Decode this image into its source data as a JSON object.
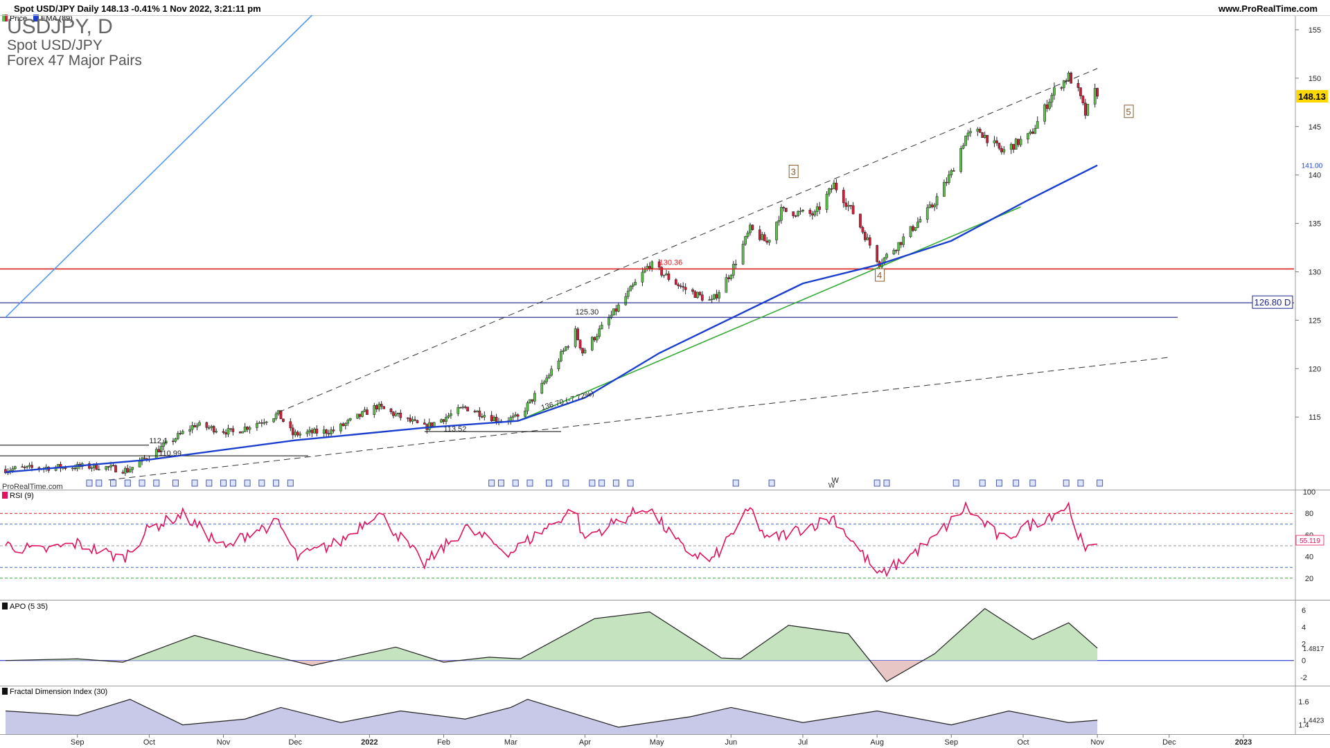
{
  "header": {
    "title": "Spot USD/JPY Daily 148.13 -0.41% 1 Nov 2022, 3:21:11 pm",
    "site": "www.ProRealTime.com"
  },
  "legend": {
    "price": "Price",
    "ema": "EMA (89)"
  },
  "overlay": {
    "symbol": "USDJPY, D",
    "name": "Spot USD/JPY",
    "list": "Forex 47 Major Pairs"
  },
  "watermark": "ProRealTime.com",
  "colors": {
    "up": "#5cbf4a",
    "down": "#d11f3a",
    "ema": "#1a3fcf",
    "trend_green": "#33aa33",
    "support_red": "#d92020",
    "horizontal_navy": "#1a1f8a",
    "rsi": "#e0115f",
    "apo_fill_pos": "#c6e3c0",
    "apo_fill_neg": "#e9c6c6",
    "fdi_fill": "#c8c8e8",
    "price_tag": "#ffd800"
  },
  "chart_data": [
    {
      "type": "candlestick",
      "title": "Spot USD/JPY Daily",
      "period": "Daily",
      "ylim": [
        107.5,
        156.5
      ],
      "y_ticks": [
        115,
        120,
        125,
        130,
        135,
        140,
        145,
        150,
        155
      ],
      "x_ticks": [
        "Sep",
        "Oct",
        "Nov",
        "Dec",
        "2022",
        "Feb",
        "Mar",
        "Apr",
        "May",
        "Jun",
        "Jul",
        "Aug",
        "Sep",
        "Oct",
        "Nov",
        "Dec",
        "2023"
      ],
      "grid": false,
      "last_price": "148.13",
      "ema_label": "141.00",
      "ema_period": 89,
      "close_anchors": [
        {
          "x": "2021-08-02",
          "y": 109.6
        },
        {
          "x": "2021-08-20",
          "y": 109.8
        },
        {
          "x": "2021-09-10",
          "y": 109.9
        },
        {
          "x": "2021-09-22",
          "y": 109.5
        },
        {
          "x": "2021-10-01",
          "y": 111.0
        },
        {
          "x": "2021-10-20",
          "y": 114.2
        },
        {
          "x": "2021-11-05",
          "y": 113.4
        },
        {
          "x": "2021-11-24",
          "y": 115.3
        },
        {
          "x": "2021-11-30",
          "y": 113.2
        },
        {
          "x": "2021-12-17",
          "y": 113.6
        },
        {
          "x": "2022-01-04",
          "y": 116.1
        },
        {
          "x": "2022-01-24",
          "y": 113.9
        },
        {
          "x": "2022-02-10",
          "y": 116.0
        },
        {
          "x": "2022-02-24",
          "y": 114.7
        },
        {
          "x": "2022-03-04",
          "y": 114.9
        },
        {
          "x": "2022-03-14",
          "y": 118.2
        },
        {
          "x": "2022-03-28",
          "y": 123.8
        },
        {
          "x": "2022-03-31",
          "y": 121.7
        },
        {
          "x": "2022-04-15",
          "y": 126.4
        },
        {
          "x": "2022-04-28",
          "y": 130.8
        },
        {
          "x": "2022-05-12",
          "y": 128.3
        },
        {
          "x": "2022-05-24",
          "y": 126.9
        },
        {
          "x": "2022-06-01",
          "y": 130.0
        },
        {
          "x": "2022-06-09",
          "y": 134.4
        },
        {
          "x": "2022-06-16",
          "y": 133.0
        },
        {
          "x": "2022-06-22",
          "y": 136.3
        },
        {
          "x": "2022-07-06",
          "y": 135.9
        },
        {
          "x": "2022-07-14",
          "y": 139.0
        },
        {
          "x": "2022-07-22",
          "y": 136.1
        },
        {
          "x": "2022-08-02",
          "y": 130.9
        },
        {
          "x": "2022-08-10",
          "y": 132.9
        },
        {
          "x": "2022-08-24",
          "y": 136.8
        },
        {
          "x": "2022-09-01",
          "y": 140.2
        },
        {
          "x": "2022-09-07",
          "y": 144.0
        },
        {
          "x": "2022-09-13",
          "y": 144.5
        },
        {
          "x": "2022-09-22",
          "y": 142.4
        },
        {
          "x": "2022-10-04",
          "y": 144.1
        },
        {
          "x": "2022-10-14",
          "y": 148.7
        },
        {
          "x": "2022-10-20",
          "y": 150.2
        },
        {
          "x": "2022-10-24",
          "y": 148.6
        },
        {
          "x": "2022-10-27",
          "y": 146.3
        },
        {
          "x": "2022-10-31",
          "y": 148.6
        },
        {
          "x": "2022-11-01",
          "y": 148.13
        }
      ],
      "ema_series": [
        {
          "x": "2021-08-02",
          "y": 109.3
        },
        {
          "x": "2021-10-01",
          "y": 110.6
        },
        {
          "x": "2021-12-01",
          "y": 112.6
        },
        {
          "x": "2022-01-24",
          "y": 113.9
        },
        {
          "x": "2022-03-04",
          "y": 114.6
        },
        {
          "x": "2022-04-01",
          "y": 117.0
        },
        {
          "x": "2022-05-02",
          "y": 121.6
        },
        {
          "x": "2022-06-01",
          "y": 125.2
        },
        {
          "x": "2022-07-01",
          "y": 128.8
        },
        {
          "x": "2022-08-01",
          "y": 130.7
        },
        {
          "x": "2022-09-01",
          "y": 133.2
        },
        {
          "x": "2022-10-03",
          "y": 137.4
        },
        {
          "x": "2022-11-01",
          "y": 141.0
        }
      ],
      "lines": [
        {
          "kind": "horizontal",
          "y": 130.3,
          "color": "support_red"
        },
        {
          "kind": "horizontal",
          "y": 126.8,
          "label": "126.80 D",
          "color": "horizontal_navy"
        },
        {
          "kind": "horizontal",
          "y": 125.3,
          "label": "125.30",
          "color": "horizontal_navy"
        },
        {
          "kind": "trend",
          "style": "dashed",
          "from": {
            "x": "2021-11-24",
            "y": 115.5
          },
          "to": {
            "x": "2022-11-01",
            "y": 151.0
          }
        },
        {
          "kind": "trend",
          "style": "dashed",
          "from": {
            "x": "2021-09-14",
            "y": 108.5
          },
          "to": {
            "x": "2022-12-02",
            "y": 121.2
          }
        },
        {
          "kind": "trend",
          "style": "solid",
          "color": "trend_green",
          "from": {
            "x": "2022-03-04",
            "y": 114.6
          },
          "to": {
            "x": "2022-09-30",
            "y": 136.7
          }
        },
        {
          "kind": "trend",
          "style": "solid",
          "color": "#5599ee",
          "from": {
            "x": "2021-08-02",
            "y": 125.3
          },
          "to": {
            "x": "2021-12-08",
            "y": 156.5
          }
        }
      ],
      "annotations": [
        {
          "text": "130.36",
          "x": "2022-05-02",
          "y": 130.7
        },
        {
          "text": "125.30",
          "x": "2022-03-28",
          "y": 125.6
        },
        {
          "text": "112.1",
          "x": "2021-10-01",
          "y": 112.3
        },
        {
          "text": "110.99",
          "x": "2021-10-05",
          "y": 111.0
        },
        {
          "text": "113.52",
          "x": "2022-02-01",
          "y": 113.5
        },
        {
          "text": "136.70 (-7.72%)",
          "x": "2022-03-14",
          "y": 115.7
        },
        {
          "text": "3",
          "x": "2022-06-27",
          "y": 140.3,
          "boxed": true
        },
        {
          "text": "4",
          "x": "2022-08-02",
          "y": 129.6,
          "boxed": true
        },
        {
          "text": "5",
          "x": "2022-11-14",
          "y": 146.5,
          "boxed": true
        },
        {
          "text": "W",
          "x": "2022-07-13",
          "y": 108.2
        }
      ]
    },
    {
      "type": "line",
      "title": "RSI (9)",
      "ylim": [
        0,
        100
      ],
      "y_ticks": [
        20,
        40,
        60,
        80,
        100
      ],
      "levels": [
        80,
        70,
        50,
        30,
        20
      ],
      "last_value": "55.119",
      "series": [
        {
          "name": "RSI (9)",
          "points": [
            {
              "x": "2021-08-02",
              "y": 51
            },
            {
              "x": "2021-08-16",
              "y": 45
            },
            {
              "x": "2021-09-01",
              "y": 52
            },
            {
              "x": "2021-09-20",
              "y": 38
            },
            {
              "x": "2021-10-01",
              "y": 66
            },
            {
              "x": "2021-10-15",
              "y": 79
            },
            {
              "x": "2021-11-02",
              "y": 47
            },
            {
              "x": "2021-11-12",
              "y": 63
            },
            {
              "x": "2021-11-24",
              "y": 71
            },
            {
              "x": "2021-12-02",
              "y": 39
            },
            {
              "x": "2021-12-20",
              "y": 54
            },
            {
              "x": "2022-01-04",
              "y": 82
            },
            {
              "x": "2022-01-24",
              "y": 33
            },
            {
              "x": "2022-02-10",
              "y": 66
            },
            {
              "x": "2022-03-01",
              "y": 44
            },
            {
              "x": "2022-03-28",
              "y": 85
            },
            {
              "x": "2022-03-31",
              "y": 57
            },
            {
              "x": "2022-04-27",
              "y": 86
            },
            {
              "x": "2022-05-12",
              "y": 47
            },
            {
              "x": "2022-05-24",
              "y": 36
            },
            {
              "x": "2022-06-09",
              "y": 84
            },
            {
              "x": "2022-06-16",
              "y": 55
            },
            {
              "x": "2022-07-14",
              "y": 76
            },
            {
              "x": "2022-08-02",
              "y": 22
            },
            {
              "x": "2022-08-24",
              "y": 55
            },
            {
              "x": "2022-09-07",
              "y": 86
            },
            {
              "x": "2022-09-22",
              "y": 56
            },
            {
              "x": "2022-10-20",
              "y": 87
            },
            {
              "x": "2022-10-27",
              "y": 43
            },
            {
              "x": "2022-11-01",
              "y": 55.1
            }
          ]
        }
      ]
    },
    {
      "type": "area",
      "title": "APO (5 35)",
      "ylim": [
        -3,
        7
      ],
      "y_ticks": [
        -2,
        0,
        2,
        4,
        6
      ],
      "last_value": "1.4817",
      "series": [
        {
          "name": "APO (5 35)",
          "points": [
            {
              "x": "2021-08-02",
              "y": 0.0
            },
            {
              "x": "2021-09-01",
              "y": 0.2
            },
            {
              "x": "2021-09-20",
              "y": -0.2
            },
            {
              "x": "2021-10-20",
              "y": 3.0
            },
            {
              "x": "2021-11-15",
              "y": 1.0
            },
            {
              "x": "2021-12-08",
              "y": -0.6
            },
            {
              "x": "2022-01-12",
              "y": 1.6
            },
            {
              "x": "2022-02-01",
              "y": -0.2
            },
            {
              "x": "2022-02-20",
              "y": 0.4
            },
            {
              "x": "2022-03-05",
              "y": 0.2
            },
            {
              "x": "2022-04-05",
              "y": 5.0
            },
            {
              "x": "2022-04-28",
              "y": 5.8
            },
            {
              "x": "2022-05-28",
              "y": 0.3
            },
            {
              "x": "2022-06-05",
              "y": 0.2
            },
            {
              "x": "2022-06-25",
              "y": 4.2
            },
            {
              "x": "2022-07-20",
              "y": 3.2
            },
            {
              "x": "2022-08-05",
              "y": -2.5
            },
            {
              "x": "2022-08-25",
              "y": 0.8
            },
            {
              "x": "2022-09-15",
              "y": 6.2
            },
            {
              "x": "2022-10-05",
              "y": 2.5
            },
            {
              "x": "2022-10-20",
              "y": 4.5
            },
            {
              "x": "2022-11-01",
              "y": 1.48
            }
          ]
        }
      ]
    },
    {
      "type": "area",
      "title": "Fractal Dimension Index (30)",
      "ylim": [
        1.32,
        1.72
      ],
      "y_ticks": [
        1.4,
        1.6
      ],
      "tick_labels": [
        "1.4",
        "1.6"
      ],
      "last_value": "1.4423",
      "series": [
        {
          "name": "Fractal Dimension Index (30)",
          "points": [
            {
              "x": "2021-08-02",
              "y": 1.52
            },
            {
              "x": "2021-09-01",
              "y": 1.48
            },
            {
              "x": "2021-09-23",
              "y": 1.62
            },
            {
              "x": "2021-10-15",
              "y": 1.4
            },
            {
              "x": "2021-11-10",
              "y": 1.45
            },
            {
              "x": "2021-11-25",
              "y": 1.55
            },
            {
              "x": "2021-12-20",
              "y": 1.42
            },
            {
              "x": "2022-01-14",
              "y": 1.52
            },
            {
              "x": "2022-02-10",
              "y": 1.45
            },
            {
              "x": "2022-03-01",
              "y": 1.55
            },
            {
              "x": "2022-03-08",
              "y": 1.62
            },
            {
              "x": "2022-04-15",
              "y": 1.38
            },
            {
              "x": "2022-05-15",
              "y": 1.47
            },
            {
              "x": "2022-06-01",
              "y": 1.55
            },
            {
              "x": "2022-07-01",
              "y": 1.42
            },
            {
              "x": "2022-08-01",
              "y": 1.52
            },
            {
              "x": "2022-09-01",
              "y": 1.4
            },
            {
              "x": "2022-09-25",
              "y": 1.52
            },
            {
              "x": "2022-10-20",
              "y": 1.42
            },
            {
              "x": "2022-11-01",
              "y": 1.44
            }
          ]
        }
      ]
    }
  ]
}
